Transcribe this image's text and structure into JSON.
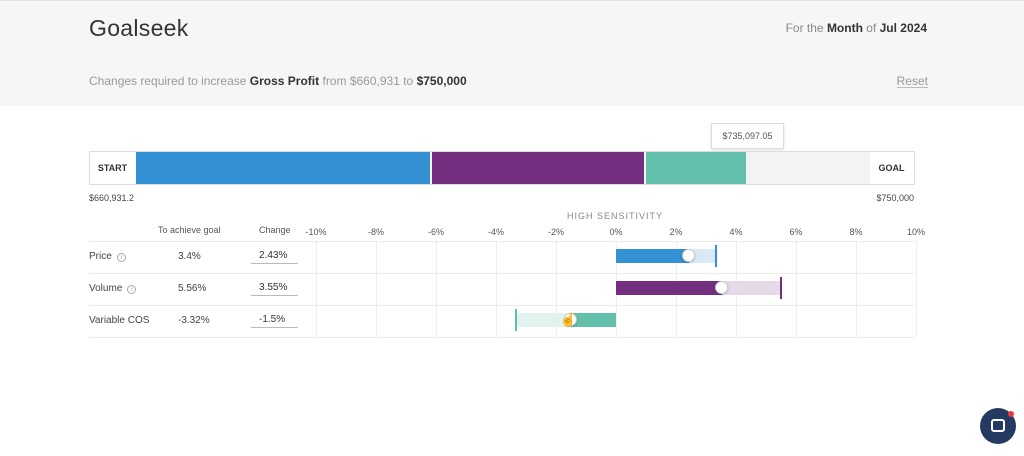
{
  "header": {
    "title": "Goalseek",
    "period_prefix": "For the",
    "period_unit": "Month",
    "period_of": "of",
    "period_value": "Jul 2024",
    "change_prefix": "Changes required to increase",
    "metric": "Gross Profit",
    "from_text": "from $660,931 to",
    "target": "$750,000",
    "reset_label": "Reset"
  },
  "progress": {
    "start_label": "START",
    "goal_label": "GOAL",
    "start_value": "$660,931.2",
    "goal_value": "$750,000",
    "tooltip_value": "$735,097.05",
    "colors": {
      "price": "#3390d3",
      "volume": "#742e80",
      "cos": "#62bfac",
      "remaining": "#f3f3f3"
    }
  },
  "sensitivity": {
    "title": "HIGH SENSITIVITY",
    "col_achieve": "To achieve goal",
    "col_change": "Change",
    "ticks": [
      "-10%",
      "-8%",
      "-6%",
      "-4%",
      "-2%",
      "0%",
      "2%",
      "4%",
      "6%",
      "8%",
      "10%"
    ],
    "rows": [
      {
        "label": "Price",
        "achieve": "3.4%",
        "change": "2.43%",
        "has_info": true
      },
      {
        "label": "Volume",
        "achieve": "5.56%",
        "change": "3.55%",
        "has_info": true
      },
      {
        "label": "Variable COS",
        "achieve": "-3.32%",
        "change": "-1.5%",
        "has_info": false
      }
    ]
  },
  "chat": {
    "icon": "chat-bubble-icon",
    "badge_color": "#e6393a"
  }
}
